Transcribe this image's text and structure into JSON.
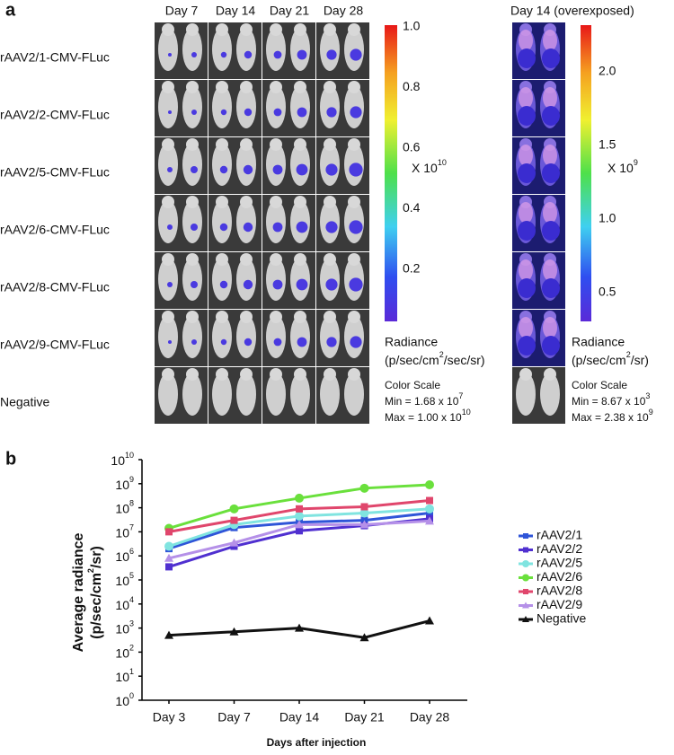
{
  "panel_a": {
    "label": "a",
    "columns": [
      "Day 7",
      "Day 14",
      "Day 21",
      "Day 28"
    ],
    "overexposed_column": "Day 14 (overexposed)",
    "rows": [
      "rAAV2/1-CMV-FLuc",
      "rAAV2/2-CMV-FLuc",
      "rAAV2/5-CMV-FLuc",
      "rAAV2/6-CMV-FLuc",
      "rAAV2/8-CMV-FLuc",
      "rAAV2/9-CMV-FLuc",
      "Negative"
    ],
    "colorbars": [
      {
        "ticks": [
          "1.0",
          "0.8",
          "0.6",
          "0.4",
          "0.2"
        ],
        "scale_prefix": "X 10",
        "scale_exp": "10",
        "radiance": "Radiance",
        "units_prefix": "(p/sec/cm",
        "units_exp": "2",
        "units_suffix": "/sec/sr)",
        "color_scale": "Color Scale",
        "min_prefix": "Min = 1.68 x 10",
        "min_exp": "7",
        "max_prefix": "Max = 1.00 x 10",
        "max_exp": "10"
      },
      {
        "ticks": [
          "2.0",
          "1.5",
          "1.0",
          "0.5"
        ],
        "scale_prefix": "X 10",
        "scale_exp": "9",
        "radiance": "Radiance",
        "units_prefix": "(p/sec/cm",
        "units_exp": "2",
        "units_suffix": "/sr)",
        "color_scale": "Color Scale",
        "min_prefix": "Min = 8.67 x 10",
        "min_exp": "3",
        "max_prefix": "Max = 2.38 x 10",
        "max_exp": "9"
      }
    ]
  },
  "chart_data": {
    "type": "line",
    "label": "b",
    "y_label": "Average radiance",
    "y_label_2_prefix": "(p/sec/cm",
    "y_label_2_exp": "2",
    "y_label_2_suffix": "/sr)",
    "x_label": "Days after injection",
    "categories": [
      "Day 3",
      "Day 7",
      "Day 14",
      "Day 21",
      "Day 28"
    ],
    "log_scale": true,
    "ylim": [
      1,
      10000000000
    ],
    "yticks": [
      {
        "value": 1,
        "label": "10",
        "exponent": "0"
      },
      {
        "value": 10,
        "label": "10",
        "exponent": "1"
      },
      {
        "value": 100,
        "label": "10",
        "exponent": "2"
      },
      {
        "value": 1000,
        "label": "10",
        "exponent": "3"
      },
      {
        "value": 10000,
        "label": "10",
        "exponent": "4"
      },
      {
        "value": 100000,
        "label": "10",
        "exponent": "5"
      },
      {
        "value": 1000000,
        "label": "10",
        "exponent": "6"
      },
      {
        "value": 10000000,
        "label": "10",
        "exponent": "7"
      },
      {
        "value": 100000000,
        "label": "10",
        "exponent": "8"
      },
      {
        "value": 1000000000,
        "label": "10",
        "exponent": "9"
      },
      {
        "value": 10000000000,
        "label": "10",
        "exponent": "10"
      }
    ],
    "legend": "right",
    "series": [
      {
        "name": "rAAV2/1",
        "color": "#2f55d8",
        "marker": "square",
        "values": [
          2000000,
          15000000,
          25000000,
          30000000,
          60000000
        ]
      },
      {
        "name": "rAAV2/2",
        "color": "#5030d0",
        "marker": "square",
        "values": [
          350000,
          2500000,
          11000000,
          18000000,
          35000000
        ]
      },
      {
        "name": "rAAV2/5",
        "color": "#80e4e0",
        "marker": "circle",
        "values": [
          2500000,
          20000000,
          45000000,
          60000000,
          90000000
        ]
      },
      {
        "name": "rAAV2/6",
        "color": "#6ae03c",
        "marker": "circle",
        "values": [
          14000000,
          90000000,
          250000000,
          650000000,
          900000000
        ]
      },
      {
        "name": "rAAV2/8",
        "color": "#e0466c",
        "marker": "square",
        "values": [
          10000000,
          30000000,
          90000000,
          110000000,
          200000000
        ]
      },
      {
        "name": "rAAV2/9",
        "color": "#b590e8",
        "marker": "triangle",
        "values": [
          800000,
          3500000,
          20000000,
          20000000,
          28000000
        ]
      },
      {
        "name": "Negative",
        "color": "#111111",
        "marker": "triangle",
        "values": [
          500,
          700,
          1000,
          400,
          2000
        ]
      }
    ]
  }
}
